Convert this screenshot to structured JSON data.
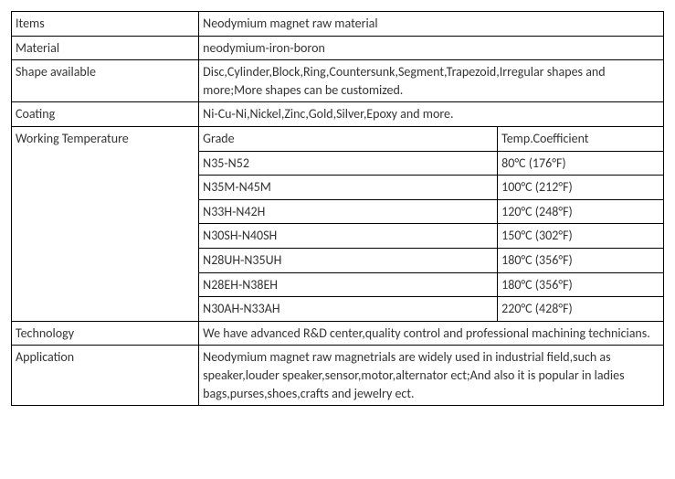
{
  "rows": {
    "items": {
      "label": "Items",
      "value": "Neodymium magnet raw material"
    },
    "material": {
      "label": "Material",
      "value": "neodymium-iron-boron"
    },
    "shape": {
      "label": "Shape available",
      "value": "Disc,Cylinder,Block,Ring,Countersunk,Segment,Trapezoid,Irregular shapes and more;More shapes can be customized."
    },
    "coating": {
      "label": "Coating",
      "value": "Ni-Cu-Ni,Nickel,Zinc,Gold,Silver,Epoxy and more."
    },
    "working_temp": {
      "label": "Working Temperature",
      "header": {
        "grade": "Grade",
        "coef": "Temp.Coefficient"
      },
      "grades": [
        {
          "grade": "N35-N52",
          "coef": "80°C (176°F)"
        },
        {
          "grade": "N35M-N45M",
          "coef": "100°C (212°F)"
        },
        {
          "grade": "N33H-N42H",
          "coef": "120°C (248°F)"
        },
        {
          "grade": "N30SH-N40SH",
          "coef": "150°C (302°F)"
        },
        {
          "grade": "N28UH-N35UH",
          "coef": "180°C (356°F)"
        },
        {
          "grade": "N28EH-N38EH",
          "coef": "180°C (356°F)"
        },
        {
          "grade": "N30AH-N33AH",
          "coef": "220°C (428°F)"
        }
      ]
    },
    "technology": {
      "label": "Technology",
      "value": "We have advanced R&D center,quality control and professional machining technicians."
    },
    "application": {
      "label": "Application",
      "value": "Neodymium magnet raw magnetrials are widely used in industrial field,such as speaker,louder speaker,sensor,motor,alternator ect;And also it is popular in ladies bags,purses,shoes,crafts and jewelry ect."
    }
  }
}
